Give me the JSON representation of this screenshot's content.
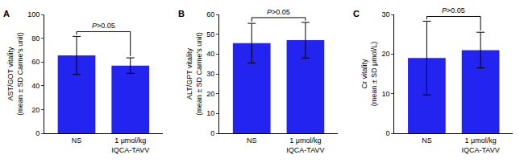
{
  "chart_data": [
    {
      "type": "bar",
      "title": "A",
      "categories": [
        "NS",
        "1 μmol/kg\nIQCA-TAVV"
      ],
      "values": [
        65.5,
        57
      ],
      "errors": [
        16,
        6.5
      ],
      "color": "#2424f0",
      "y_label": "AST/GOT vitality\n(mean ± SD Carme's unit)",
      "ylim": [
        0,
        100
      ],
      "yticks": [
        0,
        20,
        40,
        60,
        80,
        100
      ],
      "annotations": [
        "P>0.05"
      ],
      "grid": false
    },
    {
      "type": "bar",
      "title": "B",
      "categories": [
        "NS",
        "1 μmol/kg\nIQCA-TAVV"
      ],
      "values": [
        45.5,
        47
      ],
      "errors": [
        10,
        9
      ],
      "color": "#2424f0",
      "y_label": "ALT/GPT vitality\n(mean ± SD Carme's unit)",
      "ylim": [
        0,
        60
      ],
      "yticks": [
        0,
        10,
        20,
        30,
        40,
        50,
        60
      ],
      "annotations": [
        "P>0.05"
      ],
      "grid": false
    },
    {
      "type": "bar",
      "title": "C",
      "categories": [
        "NS",
        "1 μmol/kg\nIQCA-TAVV"
      ],
      "values": [
        19,
        21
      ],
      "errors": [
        9.3,
        4.5
      ],
      "color": "#2424f0",
      "y_label": "Cr vitality\n(mean ± SD μmol/L)",
      "ylim": [
        0,
        30
      ],
      "yticks": [
        0,
        10,
        20,
        30
      ],
      "annotations": [
        "P>0.05"
      ],
      "grid": false
    }
  ]
}
